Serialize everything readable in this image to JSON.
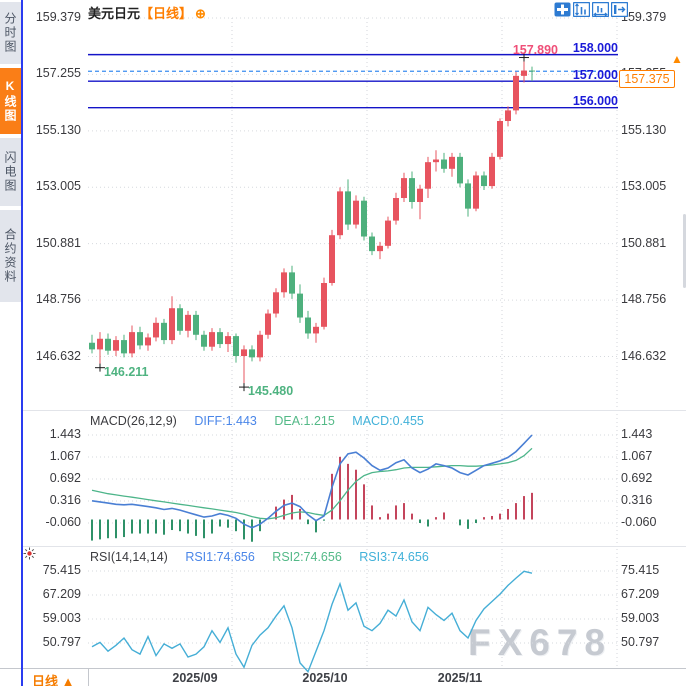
{
  "header": {
    "symbol": "美元日元",
    "period": "【日线】",
    "add_icon": "⊕"
  },
  "sidebar": {
    "tabs": [
      "分时图",
      "K线图",
      "闪电图",
      "合约资料"
    ],
    "active_index": 1
  },
  "toolbar": {
    "icons": [
      "move",
      "fit-vertical",
      "fit-horizontal",
      "go-latest"
    ]
  },
  "main_chart": {
    "y_ticks": [
      "159.379",
      "157.255",
      "155.130",
      "153.005",
      "150.881",
      "148.756",
      "146.632"
    ],
    "h_levels": [
      {
        "label": "158.000",
        "price": 158.0
      },
      {
        "label": "157.000",
        "price": 157.0
      },
      {
        "label": "156.000",
        "price": 156.0
      }
    ],
    "last_price": {
      "label": "157.375",
      "price": 157.375
    },
    "high_marker": {
      "label": "157.890",
      "price": 157.89,
      "index": 54
    },
    "low_markers": [
      {
        "label": "146.211",
        "price": 146.211,
        "index": 1
      },
      {
        "label": "145.480",
        "price": 145.48,
        "index": 19
      }
    ]
  },
  "macd_panel": {
    "title": "MACD(26,12,9)",
    "legend": [
      "DIFF:1.443",
      "DEA:1.215",
      "MACD:0.455"
    ],
    "ticks": [
      "1.443",
      "1.067",
      "0.692",
      "0.316",
      "-0.060"
    ]
  },
  "rsi_panel": {
    "title": "RSI(14,14,14)",
    "legend": [
      "RSI1:74.656",
      "RSI2:74.656",
      "RSI3:74.656"
    ],
    "ticks": [
      "75.415",
      "67.209",
      "59.003",
      "50.797"
    ]
  },
  "bottom": {
    "period": "日线",
    "arrow": "▲"
  },
  "watermark": "FX678",
  "colors": {
    "up_candle": "#e7545f",
    "down_candle": "#4eb07d",
    "level_line": "#1414c8",
    "level_text": "#1a1ad8",
    "last_price_line": "#3b8df0",
    "price_tag": "#ff7e00",
    "high_label": "#ef4f78",
    "low_label": "#4fb381",
    "dif_line": "#4a7fd4",
    "dea_line": "#4db58a",
    "hist_up": "#c4455c",
    "hist_down": "#2e9168",
    "rsi_line": "#45aed6",
    "active_tab": "#fa7e17",
    "sidebar_rail": "#2a3cf0",
    "toolbar_blue": "#2d7bd2"
  },
  "chart_data": [
    {
      "type": "candlestick",
      "title": "美元日元 日线 (USD/JPY daily)",
      "x_labels": [
        "2025/09",
        "2025/10",
        "2025/11"
      ],
      "y_ticks": [
        159.379,
        157.255,
        155.13,
        153.005,
        150.881,
        148.756,
        146.632
      ],
      "levels": [
        158.0,
        157.0,
        156.0
      ],
      "last_price": 157.375,
      "high_annotation": 157.89,
      "low_annotations": [
        146.211,
        145.48
      ],
      "candles": [
        [
          147.15,
          147.45,
          146.75,
          146.9
        ],
        [
          146.9,
          147.55,
          146.211,
          147.3
        ],
        [
          147.3,
          147.5,
          146.7,
          146.85
        ],
        [
          146.85,
          147.4,
          146.65,
          147.25
        ],
        [
          147.25,
          147.45,
          146.6,
          146.75
        ],
        [
          146.75,
          147.8,
          146.6,
          147.55
        ],
        [
          147.55,
          147.75,
          146.9,
          147.05
        ],
        [
          147.05,
          147.5,
          146.85,
          147.35
        ],
        [
          147.35,
          148.1,
          147.2,
          147.9
        ],
        [
          147.9,
          148.05,
          147.1,
          147.25
        ],
        [
          147.25,
          148.9,
          147.1,
          148.45
        ],
        [
          148.45,
          148.6,
          147.45,
          147.6
        ],
        [
          147.6,
          148.35,
          147.35,
          148.2
        ],
        [
          148.2,
          148.35,
          147.25,
          147.45
        ],
        [
          147.45,
          147.6,
          146.85,
          147.0
        ],
        [
          147.0,
          147.7,
          146.85,
          147.55
        ],
        [
          147.55,
          147.7,
          146.95,
          147.1
        ],
        [
          147.1,
          147.55,
          146.8,
          147.4
        ],
        [
          147.4,
          147.5,
          146.4,
          146.65
        ],
        [
          146.65,
          147.05,
          145.48,
          146.9
        ],
        [
          146.9,
          147.05,
          146.45,
          146.6
        ],
        [
          146.6,
          147.6,
          146.45,
          147.45
        ],
        [
          147.45,
          148.4,
          147.3,
          148.25
        ],
        [
          148.25,
          149.2,
          148.1,
          149.05
        ],
        [
          149.05,
          149.95,
          148.85,
          149.8
        ],
        [
          149.8,
          150.05,
          148.8,
          149.0
        ],
        [
          149.0,
          149.35,
          147.9,
          148.1
        ],
        [
          148.1,
          148.35,
          147.3,
          147.5
        ],
        [
          147.5,
          147.9,
          147.15,
          147.75
        ],
        [
          147.75,
          149.6,
          147.65,
          149.4
        ],
        [
          149.4,
          151.4,
          149.3,
          151.2
        ],
        [
          151.2,
          153.0,
          151.05,
          152.85
        ],
        [
          152.85,
          153.3,
          151.4,
          151.6
        ],
        [
          151.6,
          152.7,
          151.45,
          152.5
        ],
        [
          152.5,
          152.65,
          151.0,
          151.15
        ],
        [
          151.15,
          151.3,
          150.45,
          150.6
        ],
        [
          150.6,
          150.95,
          150.3,
          150.8
        ],
        [
          150.8,
          151.9,
          150.7,
          151.75
        ],
        [
          151.75,
          152.8,
          151.6,
          152.6
        ],
        [
          152.6,
          153.55,
          152.45,
          153.35
        ],
        [
          153.35,
          153.6,
          152.2,
          152.45
        ],
        [
          152.45,
          153.1,
          151.8,
          152.95
        ],
        [
          152.95,
          154.15,
          152.6,
          153.95
        ],
        [
          153.95,
          154.4,
          153.6,
          154.05
        ],
        [
          154.05,
          154.3,
          153.55,
          153.7
        ],
        [
          153.7,
          154.3,
          153.4,
          154.15
        ],
        [
          154.15,
          154.3,
          153.0,
          153.15
        ],
        [
          153.15,
          153.3,
          151.9,
          152.2
        ],
        [
          152.2,
          153.6,
          152.1,
          153.45
        ],
        [
          153.45,
          153.6,
          152.9,
          153.05
        ],
        [
          153.05,
          154.3,
          152.95,
          154.15
        ],
        [
          154.15,
          155.6,
          154.05,
          155.5
        ],
        [
          155.5,
          156.05,
          155.3,
          155.9
        ],
        [
          155.9,
          157.35,
          155.75,
          157.2
        ],
        [
          157.2,
          157.89,
          156.95,
          157.4
        ],
        [
          157.4,
          157.55,
          157.0,
          157.375
        ]
      ]
    },
    {
      "type": "line",
      "title": "MACD(26,12,9)",
      "y_ticks": [
        1.443,
        1.067,
        0.692,
        0.316,
        -0.06
      ],
      "series": [
        {
          "name": "DIFF",
          "values": [
            0.32,
            0.3,
            0.28,
            0.26,
            0.25,
            0.26,
            0.24,
            0.22,
            0.2,
            0.17,
            0.19,
            0.16,
            0.12,
            0.08,
            0.04,
            0.06,
            0.1,
            0.07,
            0.02,
            -0.08,
            -0.14,
            -0.08,
            0.02,
            0.14,
            0.24,
            0.28,
            0.22,
            0.08,
            -0.02,
            0.06,
            0.55,
            0.95,
            1.12,
            1.15,
            1.05,
            0.92,
            0.84,
            0.88,
            0.97,
            1.02,
            0.88,
            0.8,
            0.86,
            0.95,
            0.92,
            0.88,
            0.8,
            0.76,
            0.84,
            0.92,
            0.96,
            1.0,
            1.06,
            1.16,
            1.3,
            1.443
          ]
        },
        {
          "name": "DEA",
          "values": [
            0.5,
            0.47,
            0.44,
            0.42,
            0.4,
            0.38,
            0.36,
            0.34,
            0.32,
            0.3,
            0.28,
            0.26,
            0.24,
            0.22,
            0.2,
            0.18,
            0.16,
            0.14,
            0.12,
            0.09,
            0.05,
            0.02,
            0.01,
            0.03,
            0.07,
            0.11,
            0.13,
            0.12,
            0.09,
            0.07,
            0.16,
            0.32,
            0.5,
            0.65,
            0.75,
            0.8,
            0.82,
            0.83,
            0.85,
            0.88,
            0.89,
            0.89,
            0.89,
            0.9,
            0.91,
            0.92,
            0.92,
            0.91,
            0.91,
            0.92,
            0.93,
            0.95,
            0.97,
            1.01,
            1.09,
            1.215
          ]
        },
        {
          "name": "MACD-histogram",
          "values": [
            -0.36,
            -0.34,
            -0.32,
            -0.32,
            -0.3,
            -0.24,
            -0.24,
            -0.24,
            -0.24,
            -0.26,
            -0.18,
            -0.2,
            -0.24,
            -0.28,
            -0.32,
            -0.24,
            -0.12,
            -0.14,
            -0.2,
            -0.34,
            -0.38,
            -0.2,
            0.02,
            0.22,
            0.34,
            0.42,
            0.18,
            -0.08,
            -0.22,
            -0.02,
            0.78,
            1.07,
            0.95,
            0.85,
            0.6,
            0.24,
            0.04,
            0.1,
            0.24,
            0.28,
            0.1,
            -0.06,
            -0.12,
            0.04,
            0.12,
            0.0,
            -0.1,
            -0.16,
            -0.06,
            0.04,
            0.06,
            0.1,
            0.18,
            0.28,
            0.4,
            0.455
          ]
        }
      ]
    },
    {
      "type": "line",
      "title": "RSI(14,14,14)",
      "y_ticks": [
        75.415,
        67.209,
        59.003,
        50.797
      ],
      "series": [
        {
          "name": "RSI",
          "values": [
            49.5,
            51.0,
            48.0,
            50.0,
            52.5,
            48.5,
            47.0,
            53.0,
            46.5,
            50.5,
            49.0,
            50.5,
            46.0,
            47.0,
            49.5,
            55.0,
            51.0,
            56.0,
            47.0,
            42.5,
            50.0,
            53.5,
            56.0,
            60.0,
            63.5,
            56.0,
            44.0,
            41.0,
            48.0,
            55.0,
            64.0,
            71.0,
            62.0,
            64.5,
            56.5,
            55.0,
            57.5,
            62.0,
            60.0,
            65.5,
            58.0,
            55.0,
            63.0,
            60.5,
            58.5,
            61.0,
            55.0,
            52.5,
            58.5,
            62.5,
            65.0,
            67.5,
            70.5,
            73.0,
            75.3,
            74.656
          ]
        }
      ]
    }
  ]
}
